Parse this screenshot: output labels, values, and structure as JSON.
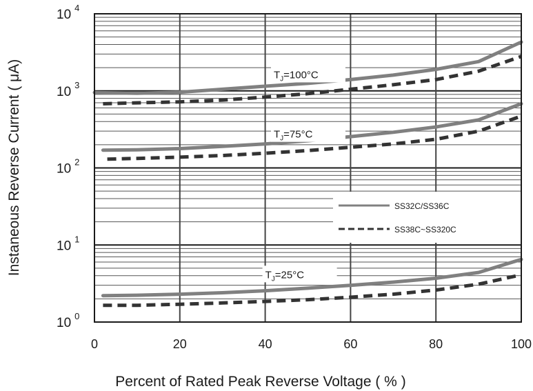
{
  "chart_data": {
    "type": "line",
    "xlabel": "Percent of Rated Peak Reverse Voltage ( % )",
    "ylabel": "Instaneous Reverse Current ( μA)",
    "x_scale": "linear",
    "y_scale": "log",
    "xlim": [
      0,
      100
    ],
    "ylim": [
      1,
      10000
    ],
    "grid": true,
    "x_ticks": [
      "0",
      "20",
      "40",
      "60",
      "80",
      "100"
    ],
    "y_ticks": [
      {
        "base": "10",
        "exp": "0"
      },
      {
        "base": "10",
        "exp": "1"
      },
      {
        "base": "10",
        "exp": "2"
      },
      {
        "base": "10",
        "exp": "3"
      },
      {
        "base": "10",
        "exp": "4"
      }
    ],
    "legend": {
      "placement": "right-middle",
      "entries": [
        {
          "label": "SS32C/SS36C",
          "style": "solid"
        },
        {
          "label": "SS38C~SS320C",
          "style": "dashed"
        }
      ]
    },
    "annotations": [
      {
        "base": "T",
        "sub": "J",
        "rest": "=100°C",
        "x": 42,
        "y": 1650
      },
      {
        "base": "T",
        "sub": "J",
        "rest": "=75°C",
        "x": 42,
        "y": 279
      },
      {
        "base": "T",
        "sub": "J",
        "rest": "=25°C",
        "x": 40,
        "y": 4.2
      }
    ],
    "series": [
      {
        "name": "SS32C/SS36C",
        "style": "solid",
        "group": "TJ=100°C",
        "x": [
          0,
          10,
          20,
          30,
          40,
          50,
          60,
          70,
          80,
          90,
          100
        ],
        "y": [
          950,
          930,
          960,
          1050,
          1150,
          1250,
          1400,
          1600,
          1900,
          2400,
          4300
        ]
      },
      {
        "name": "SS38C~SS320C",
        "style": "dashed",
        "group": "TJ=100°C",
        "x": [
          2,
          10,
          20,
          30,
          40,
          50,
          60,
          70,
          80,
          90,
          100
        ],
        "y": [
          680,
          700,
          720,
          760,
          830,
          920,
          1050,
          1200,
          1400,
          1800,
          2800
        ]
      },
      {
        "name": "SS32C/SS36C",
        "style": "solid",
        "group": "TJ=75°C",
        "x": [
          2,
          10,
          20,
          30,
          40,
          50,
          60,
          70,
          80,
          90,
          100
        ],
        "y": [
          170,
          172,
          178,
          190,
          205,
          225,
          255,
          290,
          340,
          420,
          680
        ]
      },
      {
        "name": "SS38C~SS320C",
        "style": "dashed",
        "group": "TJ=75°C",
        "x": [
          3,
          10,
          20,
          30,
          40,
          50,
          60,
          70,
          80,
          90,
          100
        ],
        "y": [
          130,
          133,
          138,
          145,
          155,
          168,
          185,
          205,
          235,
          300,
          470
        ]
      },
      {
        "name": "SS32C/SS36C",
        "style": "solid",
        "group": "TJ=25°C",
        "x": [
          2,
          10,
          20,
          30,
          40,
          50,
          60,
          70,
          80,
          90,
          100
        ],
        "y": [
          2.2,
          2.23,
          2.3,
          2.4,
          2.55,
          2.75,
          3.0,
          3.3,
          3.7,
          4.4,
          6.5
        ]
      },
      {
        "name": "SS38C~SS320C",
        "style": "dashed",
        "group": "TJ=25°C",
        "x": [
          2,
          10,
          20,
          30,
          40,
          50,
          60,
          70,
          80,
          90,
          100
        ],
        "y": [
          1.65,
          1.65,
          1.7,
          1.77,
          1.85,
          1.95,
          2.1,
          2.3,
          2.6,
          3.1,
          4.1
        ]
      }
    ]
  }
}
